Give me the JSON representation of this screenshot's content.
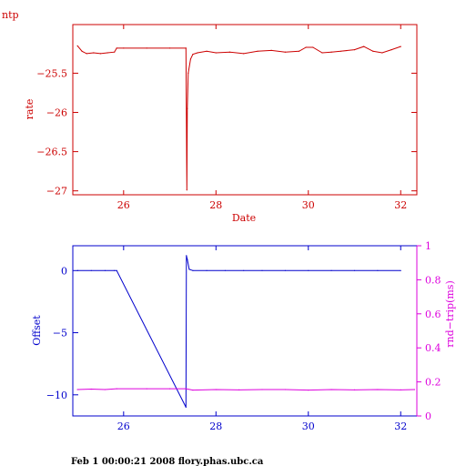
{
  "corner_label": "ntp",
  "footer": "Feb  1 00:00:21 2008 flory.phas.ubc.ca",
  "colors": {
    "top": "#cc0000",
    "offset": "#0000cc",
    "rtt": "#dd00dd"
  },
  "chart_data": [
    {
      "type": "line",
      "title": "",
      "xlabel": "Date",
      "ylabel": "rate",
      "xlim": [
        24.9,
        32.35
      ],
      "ylim": [
        -27.05,
        -24.88
      ],
      "xticks": [
        26,
        28,
        30,
        32
      ],
      "yticks": [
        -25.5,
        -26,
        -26.5,
        -27
      ],
      "ytick_labels": [
        "−25.5",
        "−26",
        "−26.5",
        "−27"
      ],
      "series": [
        {
          "x": [
            25.0,
            25.1,
            25.2,
            25.35,
            25.5,
            25.65,
            25.8,
            25.85,
            26.0,
            26.5,
            27.0,
            27.35,
            27.37,
            27.38,
            27.4,
            27.45,
            27.5,
            27.6,
            27.8,
            28.0,
            28.3,
            28.6,
            28.9,
            29.2,
            29.5,
            29.8,
            29.95,
            30.1,
            30.3,
            30.5,
            30.7,
            31.0,
            31.2,
            31.4,
            31.6,
            31.8,
            32.0
          ],
          "y": [
            -25.15,
            -25.22,
            -25.25,
            -25.24,
            -25.25,
            -25.24,
            -25.23,
            -25.18,
            -25.18,
            -25.18,
            -25.18,
            -25.18,
            -26.99,
            -25.95,
            -25.5,
            -25.32,
            -25.26,
            -25.24,
            -25.22,
            -25.24,
            -25.23,
            -25.25,
            -25.22,
            -25.21,
            -25.23,
            -25.22,
            -25.17,
            -25.17,
            -25.24,
            -25.23,
            -25.22,
            -25.2,
            -25.16,
            -25.22,
            -25.24,
            -25.2,
            -25.16
          ]
        }
      ]
    },
    {
      "type": "line",
      "title": "",
      "xlabel": "",
      "ylabel": "Offset",
      "y2label": "rnd−trip(ms)",
      "xlim": [
        24.9,
        32.35
      ],
      "ylim": [
        -11.7,
        2.0
      ],
      "y2lim": [
        0,
        1
      ],
      "xticks": [
        26,
        28,
        30,
        32
      ],
      "yticks": [
        0,
        -5,
        -10
      ],
      "ytick_labels": [
        "0",
        "−5",
        "−10"
      ],
      "y2ticks": [
        0,
        0.2,
        0.4,
        0.6,
        0.8,
        1
      ],
      "y2tick_labels": [
        "0",
        "0.2",
        "0.4",
        "0.6",
        "0.8",
        "1"
      ],
      "series": [
        {
          "axis": "left",
          "x": [
            25.0,
            25.3,
            25.6,
            25.8,
            25.85,
            27.35,
            27.36,
            27.38,
            27.42,
            27.5,
            27.8,
            28.2,
            28.6,
            29.0,
            29.5,
            30.0,
            30.5,
            31.0,
            31.5,
            32.0
          ],
          "y": [
            0.0,
            0.0,
            0.0,
            0.0,
            0.0,
            -11.0,
            1.2,
            0.9,
            0.1,
            0.0,
            0.0,
            0.0,
            0.0,
            0.0,
            0.0,
            0.0,
            0.0,
            0.0,
            0.0,
            0.0
          ]
        },
        {
          "axis": "right",
          "x": [
            25.0,
            25.3,
            25.6,
            25.85,
            26.5,
            27.0,
            27.35,
            27.5,
            28.0,
            28.5,
            29.0,
            29.5,
            30.0,
            30.5,
            31.0,
            31.5,
            32.0,
            32.3
          ],
          "y": [
            0.155,
            0.158,
            0.155,
            0.16,
            0.16,
            0.16,
            0.16,
            0.152,
            0.155,
            0.153,
            0.155,
            0.155,
            0.152,
            0.155,
            0.153,
            0.155,
            0.153,
            0.155
          ]
        }
      ]
    }
  ]
}
